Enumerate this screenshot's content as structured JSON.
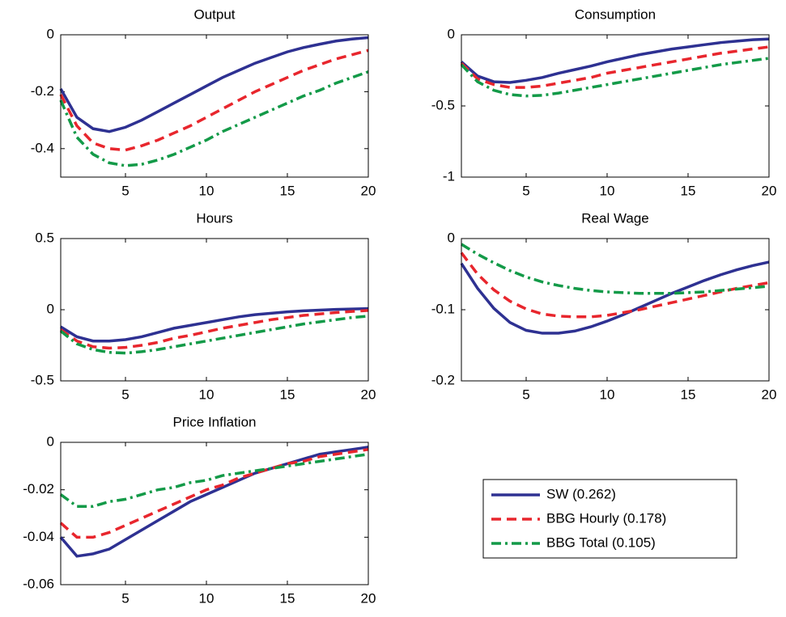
{
  "chart_data": [
    {
      "type": "line",
      "title": "Output",
      "x": [
        1,
        2,
        3,
        4,
        5,
        6,
        7,
        8,
        9,
        10,
        11,
        12,
        13,
        14,
        15,
        16,
        17,
        18,
        19,
        20
      ],
      "xlim": [
        1,
        20
      ],
      "xticks": [
        5,
        10,
        15,
        20
      ],
      "ylim": [
        -0.5,
        0
      ],
      "yticks": [
        -0.4,
        -0.2,
        0
      ],
      "series": [
        {
          "name": "SW (0.262)",
          "color": "#2e3192",
          "style": "solid",
          "values": [
            -0.19,
            -0.29,
            -0.33,
            -0.34,
            -0.325,
            -0.3,
            -0.27,
            -0.24,
            -0.21,
            -0.18,
            -0.15,
            -0.125,
            -0.1,
            -0.08,
            -0.06,
            -0.045,
            -0.033,
            -0.022,
            -0.015,
            -0.01
          ]
        },
        {
          "name": "BBG Hourly (0.178)",
          "color": "#e8262d",
          "style": "dash",
          "values": [
            -0.21,
            -0.32,
            -0.38,
            -0.4,
            -0.405,
            -0.39,
            -0.37,
            -0.345,
            -0.32,
            -0.29,
            -0.26,
            -0.23,
            -0.2,
            -0.175,
            -0.15,
            -0.125,
            -0.105,
            -0.085,
            -0.07,
            -0.055
          ]
        },
        {
          "name": "BBG Total (0.105)",
          "color": "#139a48",
          "style": "dashdot",
          "values": [
            -0.23,
            -0.36,
            -0.42,
            -0.45,
            -0.46,
            -0.455,
            -0.44,
            -0.42,
            -0.395,
            -0.37,
            -0.34,
            -0.315,
            -0.29,
            -0.265,
            -0.24,
            -0.215,
            -0.195,
            -0.17,
            -0.15,
            -0.13
          ]
        }
      ]
    },
    {
      "type": "line",
      "title": "Consumption",
      "x": [
        1,
        2,
        3,
        4,
        5,
        6,
        7,
        8,
        9,
        10,
        11,
        12,
        13,
        14,
        15,
        16,
        17,
        18,
        19,
        20
      ],
      "xlim": [
        1,
        20
      ],
      "xticks": [
        5,
        10,
        15,
        20
      ],
      "ylim": [
        -1,
        0
      ],
      "yticks": [
        -1,
        -0.5,
        0
      ],
      "series": [
        {
          "color": "#2e3192",
          "style": "solid",
          "values": [
            -0.19,
            -0.29,
            -0.33,
            -0.335,
            -0.32,
            -0.3,
            -0.27,
            -0.245,
            -0.22,
            -0.19,
            -0.165,
            -0.14,
            -0.12,
            -0.1,
            -0.085,
            -0.07,
            -0.055,
            -0.045,
            -0.035,
            -0.03
          ]
        },
        {
          "color": "#e8262d",
          "style": "dash",
          "values": [
            -0.2,
            -0.31,
            -0.35,
            -0.37,
            -0.37,
            -0.36,
            -0.34,
            -0.32,
            -0.3,
            -0.27,
            -0.25,
            -0.23,
            -0.21,
            -0.19,
            -0.17,
            -0.15,
            -0.13,
            -0.115,
            -0.1,
            -0.085
          ]
        },
        {
          "color": "#139a48",
          "style": "dashdot",
          "values": [
            -0.21,
            -0.33,
            -0.39,
            -0.42,
            -0.43,
            -0.425,
            -0.41,
            -0.39,
            -0.37,
            -0.35,
            -0.33,
            -0.31,
            -0.29,
            -0.27,
            -0.25,
            -0.23,
            -0.21,
            -0.195,
            -0.18,
            -0.165
          ]
        }
      ]
    },
    {
      "type": "line",
      "title": "Hours",
      "x": [
        1,
        2,
        3,
        4,
        5,
        6,
        7,
        8,
        9,
        10,
        11,
        12,
        13,
        14,
        15,
        16,
        17,
        18,
        19,
        20
      ],
      "xlim": [
        1,
        20
      ],
      "xticks": [
        5,
        10,
        15,
        20
      ],
      "ylim": [
        -0.5,
        0.5
      ],
      "yticks": [
        -0.5,
        0,
        0.5
      ],
      "series": [
        {
          "color": "#2e3192",
          "style": "solid",
          "values": [
            -0.12,
            -0.19,
            -0.22,
            -0.22,
            -0.21,
            -0.19,
            -0.16,
            -0.13,
            -0.11,
            -0.09,
            -0.07,
            -0.05,
            -0.035,
            -0.025,
            -0.015,
            -0.008,
            -0.003,
            0.002,
            0.005,
            0.008
          ]
        },
        {
          "color": "#e8262d",
          "style": "dash",
          "values": [
            -0.14,
            -0.22,
            -0.26,
            -0.27,
            -0.265,
            -0.25,
            -0.23,
            -0.2,
            -0.18,
            -0.155,
            -0.13,
            -0.11,
            -0.09,
            -0.07,
            -0.055,
            -0.04,
            -0.03,
            -0.02,
            -0.012,
            -0.005
          ]
        },
        {
          "color": "#139a48",
          "style": "dashdot",
          "values": [
            -0.15,
            -0.24,
            -0.28,
            -0.3,
            -0.305,
            -0.295,
            -0.28,
            -0.26,
            -0.24,
            -0.22,
            -0.2,
            -0.18,
            -0.16,
            -0.14,
            -0.12,
            -0.1,
            -0.085,
            -0.07,
            -0.055,
            -0.045
          ]
        }
      ]
    },
    {
      "type": "line",
      "title": "Real Wage",
      "x": [
        1,
        2,
        3,
        4,
        5,
        6,
        7,
        8,
        9,
        10,
        11,
        12,
        13,
        14,
        15,
        16,
        17,
        18,
        19,
        20
      ],
      "xlim": [
        1,
        20
      ],
      "xticks": [
        5,
        10,
        15,
        20
      ],
      "ylim": [
        -0.2,
        0
      ],
      "yticks": [
        -0.2,
        -0.1,
        0
      ],
      "series": [
        {
          "color": "#2e3192",
          "style": "solid",
          "values": [
            -0.035,
            -0.07,
            -0.098,
            -0.118,
            -0.129,
            -0.133,
            -0.133,
            -0.13,
            -0.124,
            -0.116,
            -0.107,
            -0.097,
            -0.087,
            -0.077,
            -0.068,
            -0.059,
            -0.051,
            -0.044,
            -0.038,
            -0.033
          ]
        },
        {
          "color": "#e8262d",
          "style": "dash",
          "values": [
            -0.02,
            -0.05,
            -0.072,
            -0.088,
            -0.099,
            -0.106,
            -0.109,
            -0.11,
            -0.11,
            -0.108,
            -0.104,
            -0.1,
            -0.095,
            -0.09,
            -0.085,
            -0.08,
            -0.075,
            -0.07,
            -0.066,
            -0.062
          ]
        },
        {
          "color": "#139a48",
          "style": "dashdot",
          "values": [
            -0.008,
            -0.022,
            -0.034,
            -0.045,
            -0.054,
            -0.061,
            -0.066,
            -0.07,
            -0.073,
            -0.075,
            -0.076,
            -0.077,
            -0.077,
            -0.077,
            -0.076,
            -0.075,
            -0.073,
            -0.071,
            -0.069,
            -0.067
          ]
        }
      ]
    },
    {
      "type": "line",
      "title": "Price Inflation",
      "x": [
        1,
        2,
        3,
        4,
        5,
        6,
        7,
        8,
        9,
        10,
        11,
        12,
        13,
        14,
        15,
        16,
        17,
        18,
        19,
        20
      ],
      "xlim": [
        1,
        20
      ],
      "xticks": [
        5,
        10,
        15,
        20
      ],
      "ylim": [
        -0.06,
        0
      ],
      "yticks": [
        -0.06,
        -0.04,
        -0.02,
        0
      ],
      "series": [
        {
          "color": "#2e3192",
          "style": "solid",
          "values": [
            -0.04,
            -0.048,
            -0.047,
            -0.045,
            -0.041,
            -0.037,
            -0.033,
            -0.029,
            -0.025,
            -0.022,
            -0.019,
            -0.016,
            -0.013,
            -0.011,
            -0.009,
            -0.007,
            -0.005,
            -0.004,
            -0.003,
            -0.002
          ]
        },
        {
          "color": "#e8262d",
          "style": "dash",
          "values": [
            -0.034,
            -0.04,
            -0.04,
            -0.038,
            -0.035,
            -0.032,
            -0.029,
            -0.026,
            -0.023,
            -0.02,
            -0.018,
            -0.015,
            -0.013,
            -0.011,
            -0.009,
            -0.008,
            -0.006,
            -0.005,
            -0.004,
            -0.003
          ]
        },
        {
          "color": "#139a48",
          "style": "dashdot",
          "values": [
            -0.022,
            -0.027,
            -0.027,
            -0.025,
            -0.024,
            -0.022,
            -0.02,
            -0.019,
            -0.017,
            -0.016,
            -0.014,
            -0.013,
            -0.012,
            -0.011,
            -0.01,
            -0.009,
            -0.008,
            -0.007,
            -0.006,
            -0.005
          ]
        }
      ]
    }
  ]
}
